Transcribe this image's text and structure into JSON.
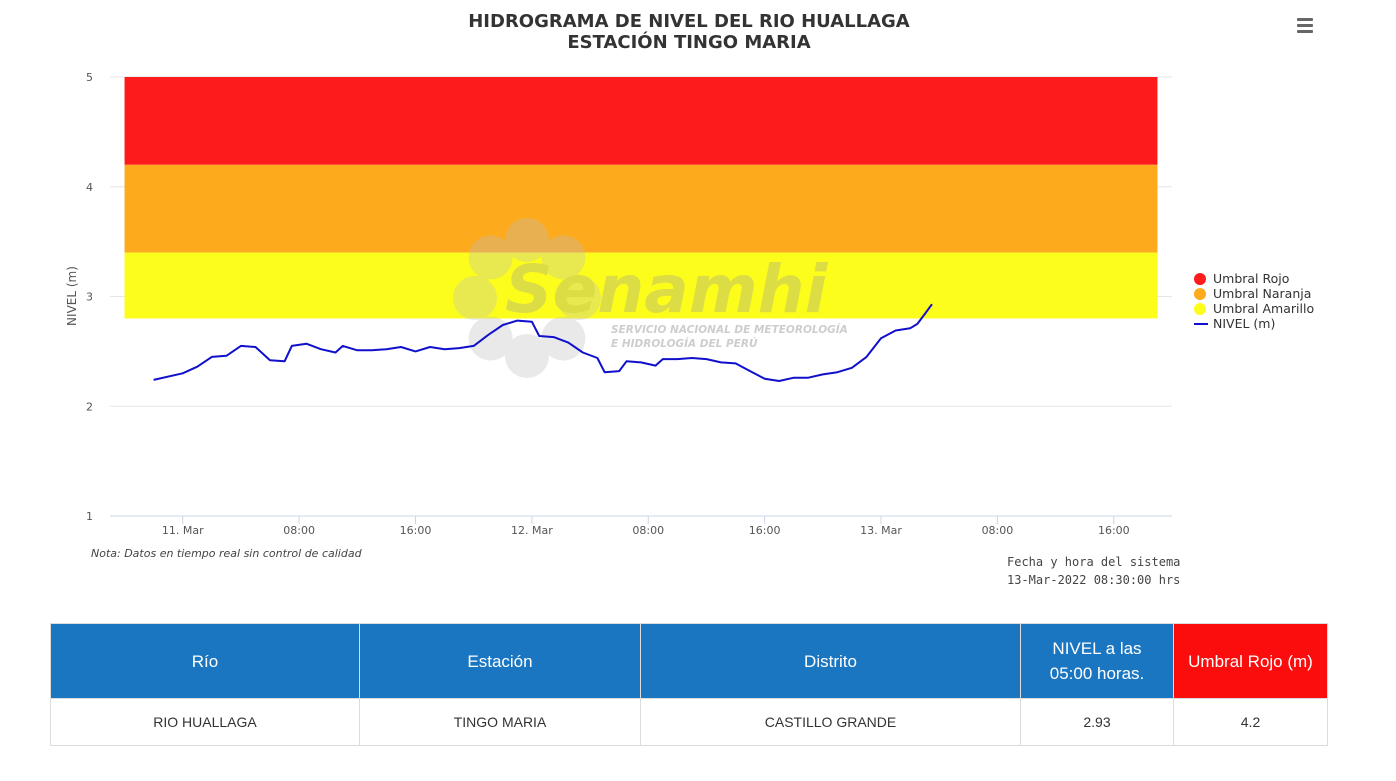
{
  "menu": {
    "icon": "hamburger-menu-icon"
  },
  "note": "Nota: Datos en tiempo real sin control de calidad",
  "system": {
    "label": "Fecha y hora del sistema",
    "datetime": "13-Mar-2022 08:30:00 hrs"
  },
  "legend": [
    {
      "label": "Umbral Rojo",
      "color": "#fe1b1b"
    },
    {
      "label": "Umbral Naranja",
      "color": "#fdab1d"
    },
    {
      "label": "Umbral Amarillo",
      "color": "#fdfd1c"
    },
    {
      "label": "NIVEL (m)",
      "color": "#1010cc"
    }
  ],
  "watermark": {
    "brand": "Senamhi",
    "line1": "SERVICIO NACIONAL DE METEOROLOGÍA",
    "line2": "E HIDROLOGÍA DEL PERÚ"
  },
  "chart_data": {
    "type": "line",
    "title": "HIDROGRAMA DE NIVEL DEL RIO HUALLAGA",
    "subtitle": "ESTACIÓN TINGO MARIA",
    "ylabel": "NIVEL (m)",
    "ylim": [
      1,
      5
    ],
    "yticks": [
      "1",
      "2",
      "3",
      "4",
      "5"
    ],
    "x_range": [
      "2022-03-10 19:00",
      "2022-03-13 20:00"
    ],
    "xticks": [
      {
        "x": "2022-03-11 00:00",
        "label": "11. Mar"
      },
      {
        "x": "2022-03-11 08:00",
        "label": "08:00"
      },
      {
        "x": "2022-03-11 16:00",
        "label": "16:00"
      },
      {
        "x": "2022-03-12 00:00",
        "label": "12. Mar"
      },
      {
        "x": "2022-03-12 08:00",
        "label": "08:00"
      },
      {
        "x": "2022-03-12 16:00",
        "label": "16:00"
      },
      {
        "x": "2022-03-13 00:00",
        "label": "13. Mar"
      },
      {
        "x": "2022-03-13 08:00",
        "label": "08:00"
      },
      {
        "x": "2022-03-13 16:00",
        "label": "16:00"
      }
    ],
    "bands": [
      {
        "name": "Umbral Rojo",
        "from": 4.2,
        "to": 5.0,
        "color": "#fe1b1b"
      },
      {
        "name": "Umbral Naranja",
        "from": 3.4,
        "to": 4.2,
        "color": "#fdab1d"
      },
      {
        "name": "Umbral Amarillo",
        "from": 2.8,
        "to": 3.4,
        "color": "#fdfd1c"
      }
    ],
    "band_x_range": [
      "2022-03-10 20:00",
      "2022-03-13 19:00"
    ],
    "series": [
      {
        "name": "NIVEL (m)",
        "color": "#1010cc",
        "points": [
          [
            "2022-03-10 22:00",
            2.24
          ],
          [
            "2022-03-11 00:00",
            2.3
          ],
          [
            "2022-03-11 01:00",
            2.36
          ],
          [
            "2022-03-11 02:00",
            2.45
          ],
          [
            "2022-03-11 03:00",
            2.46
          ],
          [
            "2022-03-11 04:00",
            2.55
          ],
          [
            "2022-03-11 05:00",
            2.54
          ],
          [
            "2022-03-11 06:00",
            2.42
          ],
          [
            "2022-03-11 07:00",
            2.41
          ],
          [
            "2022-03-11 07:30",
            2.55
          ],
          [
            "2022-03-11 08:30",
            2.57
          ],
          [
            "2022-03-11 09:30",
            2.52
          ],
          [
            "2022-03-11 10:30",
            2.49
          ],
          [
            "2022-03-11 11:00",
            2.55
          ],
          [
            "2022-03-11 12:00",
            2.51
          ],
          [
            "2022-03-11 13:00",
            2.51
          ],
          [
            "2022-03-11 14:00",
            2.52
          ],
          [
            "2022-03-11 15:00",
            2.54
          ],
          [
            "2022-03-11 16:00",
            2.5
          ],
          [
            "2022-03-11 17:00",
            2.54
          ],
          [
            "2022-03-11 18:00",
            2.52
          ],
          [
            "2022-03-11 19:00",
            2.53
          ],
          [
            "2022-03-11 20:00",
            2.55
          ],
          [
            "2022-03-11 21:00",
            2.65
          ],
          [
            "2022-03-11 22:00",
            2.74
          ],
          [
            "2022-03-11 23:00",
            2.78
          ],
          [
            "2022-03-12 00:00",
            2.77
          ],
          [
            "2022-03-12 00:30",
            2.64
          ],
          [
            "2022-03-12 01:30",
            2.63
          ],
          [
            "2022-03-12 02:30",
            2.58
          ],
          [
            "2022-03-12 03:30",
            2.49
          ],
          [
            "2022-03-12 04:30",
            2.44
          ],
          [
            "2022-03-12 05:00",
            2.31
          ],
          [
            "2022-03-12 06:00",
            2.32
          ],
          [
            "2022-03-12 06:30",
            2.41
          ],
          [
            "2022-03-12 07:30",
            2.4
          ],
          [
            "2022-03-12 08:30",
            2.37
          ],
          [
            "2022-03-12 09:00",
            2.43
          ],
          [
            "2022-03-12 10:00",
            2.43
          ],
          [
            "2022-03-12 11:00",
            2.44
          ],
          [
            "2022-03-12 12:00",
            2.43
          ],
          [
            "2022-03-12 13:00",
            2.4
          ],
          [
            "2022-03-12 14:00",
            2.39
          ],
          [
            "2022-03-12 15:00",
            2.32
          ],
          [
            "2022-03-12 16:00",
            2.25
          ],
          [
            "2022-03-12 17:00",
            2.23
          ],
          [
            "2022-03-12 18:00",
            2.26
          ],
          [
            "2022-03-12 19:00",
            2.26
          ],
          [
            "2022-03-12 20:00",
            2.29
          ],
          [
            "2022-03-12 21:00",
            2.31
          ],
          [
            "2022-03-12 22:00",
            2.35
          ],
          [
            "2022-03-12 23:00",
            2.45
          ],
          [
            "2022-03-13 00:00",
            2.62
          ],
          [
            "2022-03-13 01:00",
            2.69
          ],
          [
            "2022-03-13 02:00",
            2.71
          ],
          [
            "2022-03-13 02:30",
            2.75
          ],
          [
            "2022-03-13 03:00",
            2.84
          ],
          [
            "2022-03-13 03:30",
            2.93
          ]
        ]
      }
    ]
  },
  "table": {
    "headers": [
      "Río",
      "Estación",
      "Distrito",
      "NIVEL a las 05:00 horas.",
      "Umbral Rojo (m)"
    ],
    "row": [
      "RIO HUALLAGA",
      "TINGO MARIA",
      "CASTILLO GRANDE",
      "2.93",
      "4.2"
    ]
  }
}
